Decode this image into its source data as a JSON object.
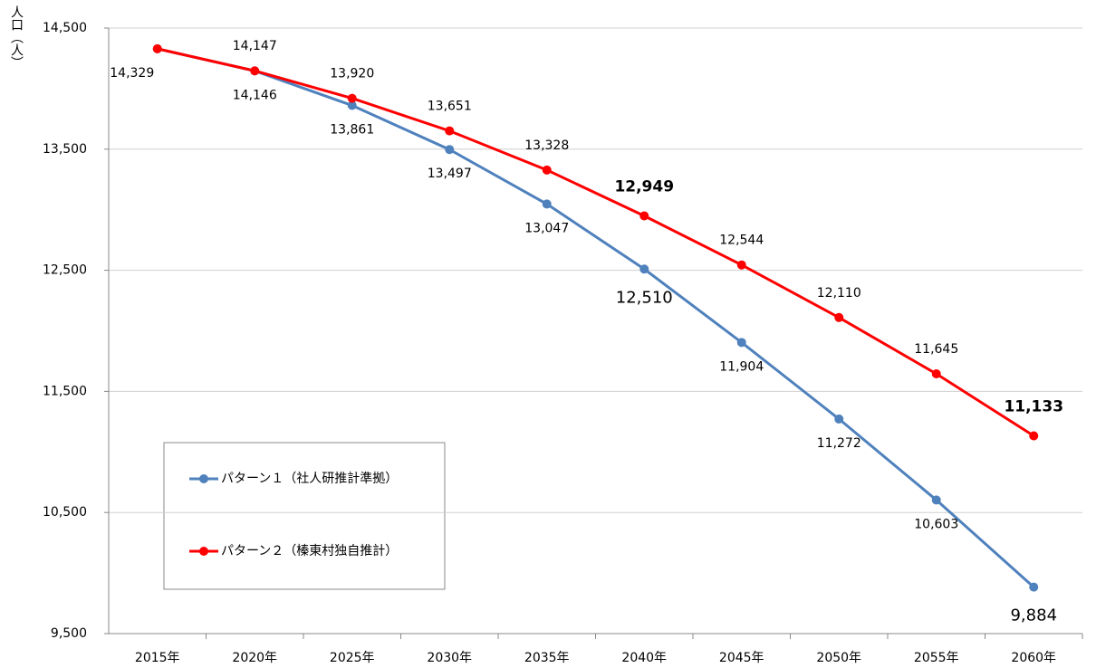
{
  "chart_data": {
    "type": "line",
    "y_label": "人口（人）",
    "categories": [
      "2015年",
      "2020年",
      "2025年",
      "2030年",
      "2035年",
      "2040年",
      "2045年",
      "2050年",
      "2055年",
      "2060年"
    ],
    "series": [
      {
        "name": "パターン１（社人研推計準拠）",
        "color": "#4f81bd",
        "values": [
          14329,
          14146,
          13861,
          13497,
          13047,
          12510,
          11904,
          11272,
          10603,
          9884
        ],
        "value_labels": [
          "14,329",
          "14,146",
          "13,861",
          "13,497",
          "13,047",
          "12,510",
          "11,904",
          "11,272",
          "10,603",
          "9,884"
        ]
      },
      {
        "name": "パターン２（榛東村独自推計）",
        "color": "#ff0000",
        "values": [
          14329,
          14147,
          13920,
          13651,
          13328,
          12949,
          12544,
          12110,
          11645,
          11133
        ],
        "value_labels": [
          null,
          "14,147",
          "13,920",
          "13,651",
          "13,328",
          "12,949",
          "12,544",
          "12,110",
          "11,645",
          "11,133"
        ]
      }
    ],
    "ylim": [
      9500,
      14500
    ],
    "yticks": [
      {
        "value": 9500,
        "label": "9,500"
      },
      {
        "value": 10500,
        "label": "10,500"
      },
      {
        "value": 11500,
        "label": "11,500"
      },
      {
        "value": 12500,
        "label": "12,500"
      },
      {
        "value": 13500,
        "label": "13,500"
      },
      {
        "value": 14500,
        "label": "14,500"
      }
    ],
    "grid": true
  }
}
